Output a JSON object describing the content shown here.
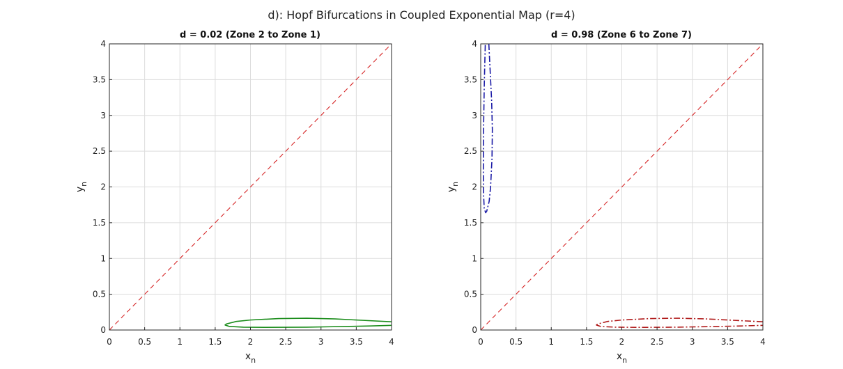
{
  "figure": {
    "suptitle": "d): Hopf Bifurcations in Coupled Exponential Map (r=4)"
  },
  "chart_data": [
    {
      "type": "line",
      "title": "d = 0.02 (Zone 2 to Zone 1)",
      "xlabel_base": "x",
      "xlabel_sub": "n",
      "ylabel_base": "y",
      "ylabel_sub": "n",
      "xlim": [
        0,
        4
      ],
      "ylim": [
        0,
        4
      ],
      "xticks": [
        0,
        0.5,
        1,
        1.5,
        2,
        2.5,
        3,
        3.5,
        4
      ],
      "yticks": [
        0,
        0.5,
        1,
        1.5,
        2,
        2.5,
        3,
        3.5,
        4
      ],
      "xtick_labels": [
        "0",
        "0.5",
        "1",
        "1.5",
        "2",
        "2.5",
        "3",
        "3.5",
        "4"
      ],
      "ytick_labels": [
        "0",
        "0.5",
        "1",
        "1.5",
        "2",
        "2.5",
        "3",
        "3.5",
        "4"
      ],
      "grid": true,
      "series": [
        {
          "style": "dashed",
          "color": "#d62728",
          "x": [
            0,
            4
          ],
          "y": [
            0,
            4
          ]
        },
        {
          "style": "solid",
          "color": "#1a8c1a",
          "x": [
            4.0,
            3.6,
            3.2,
            2.8,
            2.4,
            2.0,
            1.8,
            1.66,
            1.64,
            1.7,
            1.9,
            2.2,
            2.5,
            2.8,
            3.1,
            3.4,
            3.7,
            4.0
          ],
          "y": [
            0.115,
            0.135,
            0.155,
            0.165,
            0.16,
            0.14,
            0.12,
            0.085,
            0.07,
            0.05,
            0.04,
            0.037,
            0.038,
            0.04,
            0.045,
            0.05,
            0.057,
            0.065
          ]
        }
      ]
    },
    {
      "type": "line",
      "title": "d = 0.98 (Zone 6 to Zone 7)",
      "xlabel_base": "x",
      "xlabel_sub": "n",
      "ylabel_base": "y",
      "ylabel_sub": "n",
      "xlim": [
        0,
        4
      ],
      "ylim": [
        0,
        4
      ],
      "xticks": [
        0,
        0.5,
        1,
        1.5,
        2,
        2.5,
        3,
        3.5,
        4
      ],
      "yticks": [
        0,
        0.5,
        1,
        1.5,
        2,
        2.5,
        3,
        3.5,
        4
      ],
      "xtick_labels": [
        "0",
        "0.5",
        "1",
        "1.5",
        "2",
        "2.5",
        "3",
        "3.5",
        "4"
      ],
      "ytick_labels": [
        "0",
        "0.5",
        "1",
        "1.5",
        "2",
        "2.5",
        "3",
        "3.5",
        "4"
      ],
      "grid": true,
      "series": [
        {
          "style": "dashed",
          "color": "#d62728",
          "x": [
            0,
            4
          ],
          "y": [
            0,
            4
          ]
        },
        {
          "style": "dashdot",
          "color": "#1a1aa6",
          "x": [
            0.115,
            0.135,
            0.155,
            0.165,
            0.16,
            0.14,
            0.12,
            0.085,
            0.07,
            0.05,
            0.04,
            0.037,
            0.038,
            0.04,
            0.045,
            0.05,
            0.057,
            0.065
          ],
          "y": [
            4.0,
            3.6,
            3.2,
            2.8,
            2.4,
            2.0,
            1.8,
            1.66,
            1.64,
            1.7,
            1.9,
            2.2,
            2.5,
            2.8,
            3.1,
            3.4,
            3.7,
            4.0
          ]
        },
        {
          "style": "dashdot",
          "color": "#b01a1a",
          "x": [
            4.0,
            3.6,
            3.2,
            2.8,
            2.4,
            2.0,
            1.8,
            1.66,
            1.64,
            1.7,
            1.9,
            2.2,
            2.5,
            2.8,
            3.1,
            3.4,
            3.7,
            4.0
          ],
          "y": [
            0.115,
            0.135,
            0.155,
            0.165,
            0.16,
            0.14,
            0.12,
            0.085,
            0.07,
            0.05,
            0.04,
            0.037,
            0.038,
            0.04,
            0.045,
            0.05,
            0.057,
            0.065
          ]
        }
      ]
    }
  ]
}
